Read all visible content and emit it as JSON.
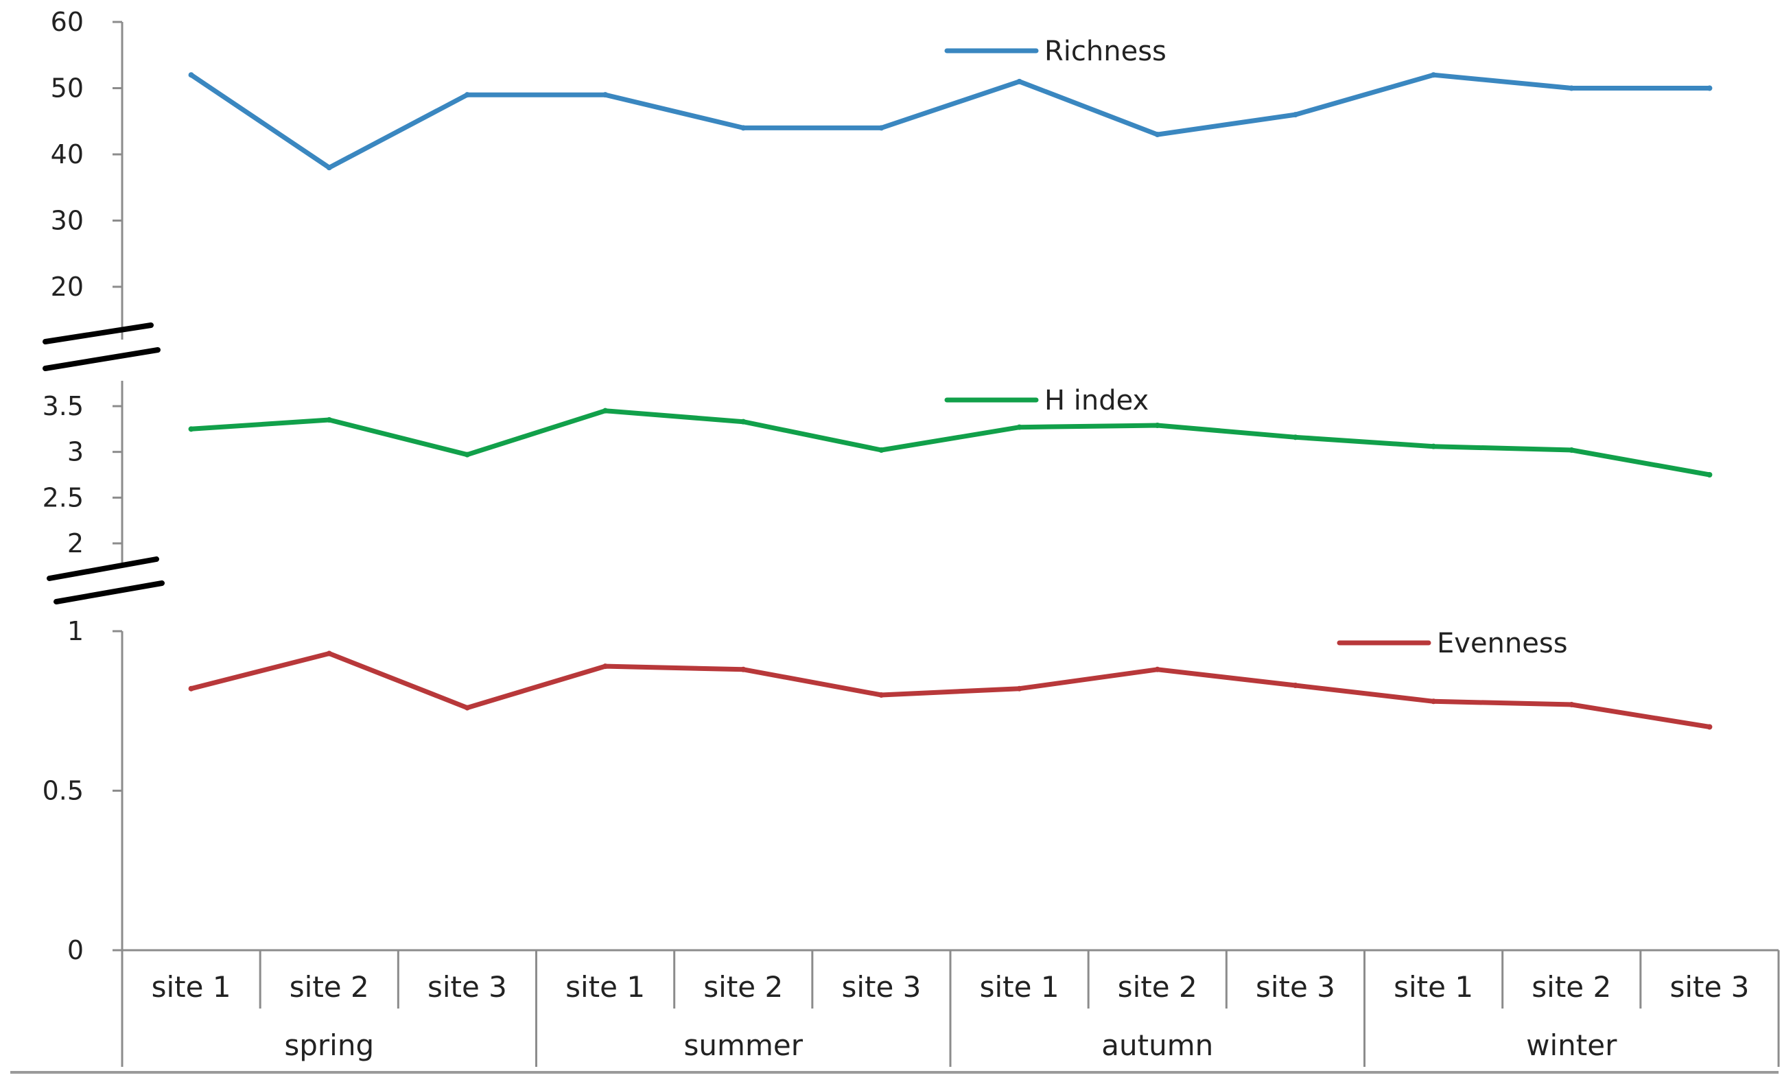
{
  "chart_data": {
    "type": "line",
    "categories": [
      "site 1",
      "site 2",
      "site 3",
      "site 1",
      "site 2",
      "site 3",
      "site 1",
      "site 2",
      "site 3",
      "site 1",
      "site 2",
      "site 3"
    ],
    "groups": [
      "spring",
      "summer",
      "autumn",
      "winter"
    ],
    "group_size": 3,
    "panels": [
      {
        "name": "Richness",
        "color": "#3a87c0",
        "ylim": [
          20,
          60
        ],
        "yticks": [
          20,
          30,
          40,
          50,
          60
        ],
        "ytick_labels": [
          "20",
          "30",
          "40",
          "50",
          "60"
        ],
        "values": [
          52,
          38,
          49,
          49,
          44,
          44,
          51,
          43,
          46,
          52,
          50,
          50
        ],
        "legend_position": "top-center"
      },
      {
        "name": "H index",
        "color": "#11a04a",
        "ylim": [
          2,
          3.5
        ],
        "yticks": [
          2,
          2.5,
          3,
          3.5
        ],
        "ytick_labels": [
          "2",
          "2.5",
          "3",
          "3.5"
        ],
        "values": [
          3.25,
          3.35,
          2.97,
          3.45,
          3.33,
          3.02,
          3.27,
          3.29,
          3.16,
          3.06,
          3.02,
          2.75
        ],
        "legend_position": "top-center"
      },
      {
        "name": "Evenness",
        "color": "#b8383a",
        "ylim": [
          0,
          1
        ],
        "yticks": [
          0,
          0.5,
          1
        ],
        "ytick_labels": [
          "0",
          "0.5",
          "1"
        ],
        "values": [
          0.82,
          0.93,
          0.76,
          0.89,
          0.88,
          0.8,
          0.82,
          0.88,
          0.83,
          0.78,
          0.77,
          0.7
        ],
        "legend_position": "top-right"
      }
    ],
    "axis_breaks": 2,
    "grid": false
  }
}
